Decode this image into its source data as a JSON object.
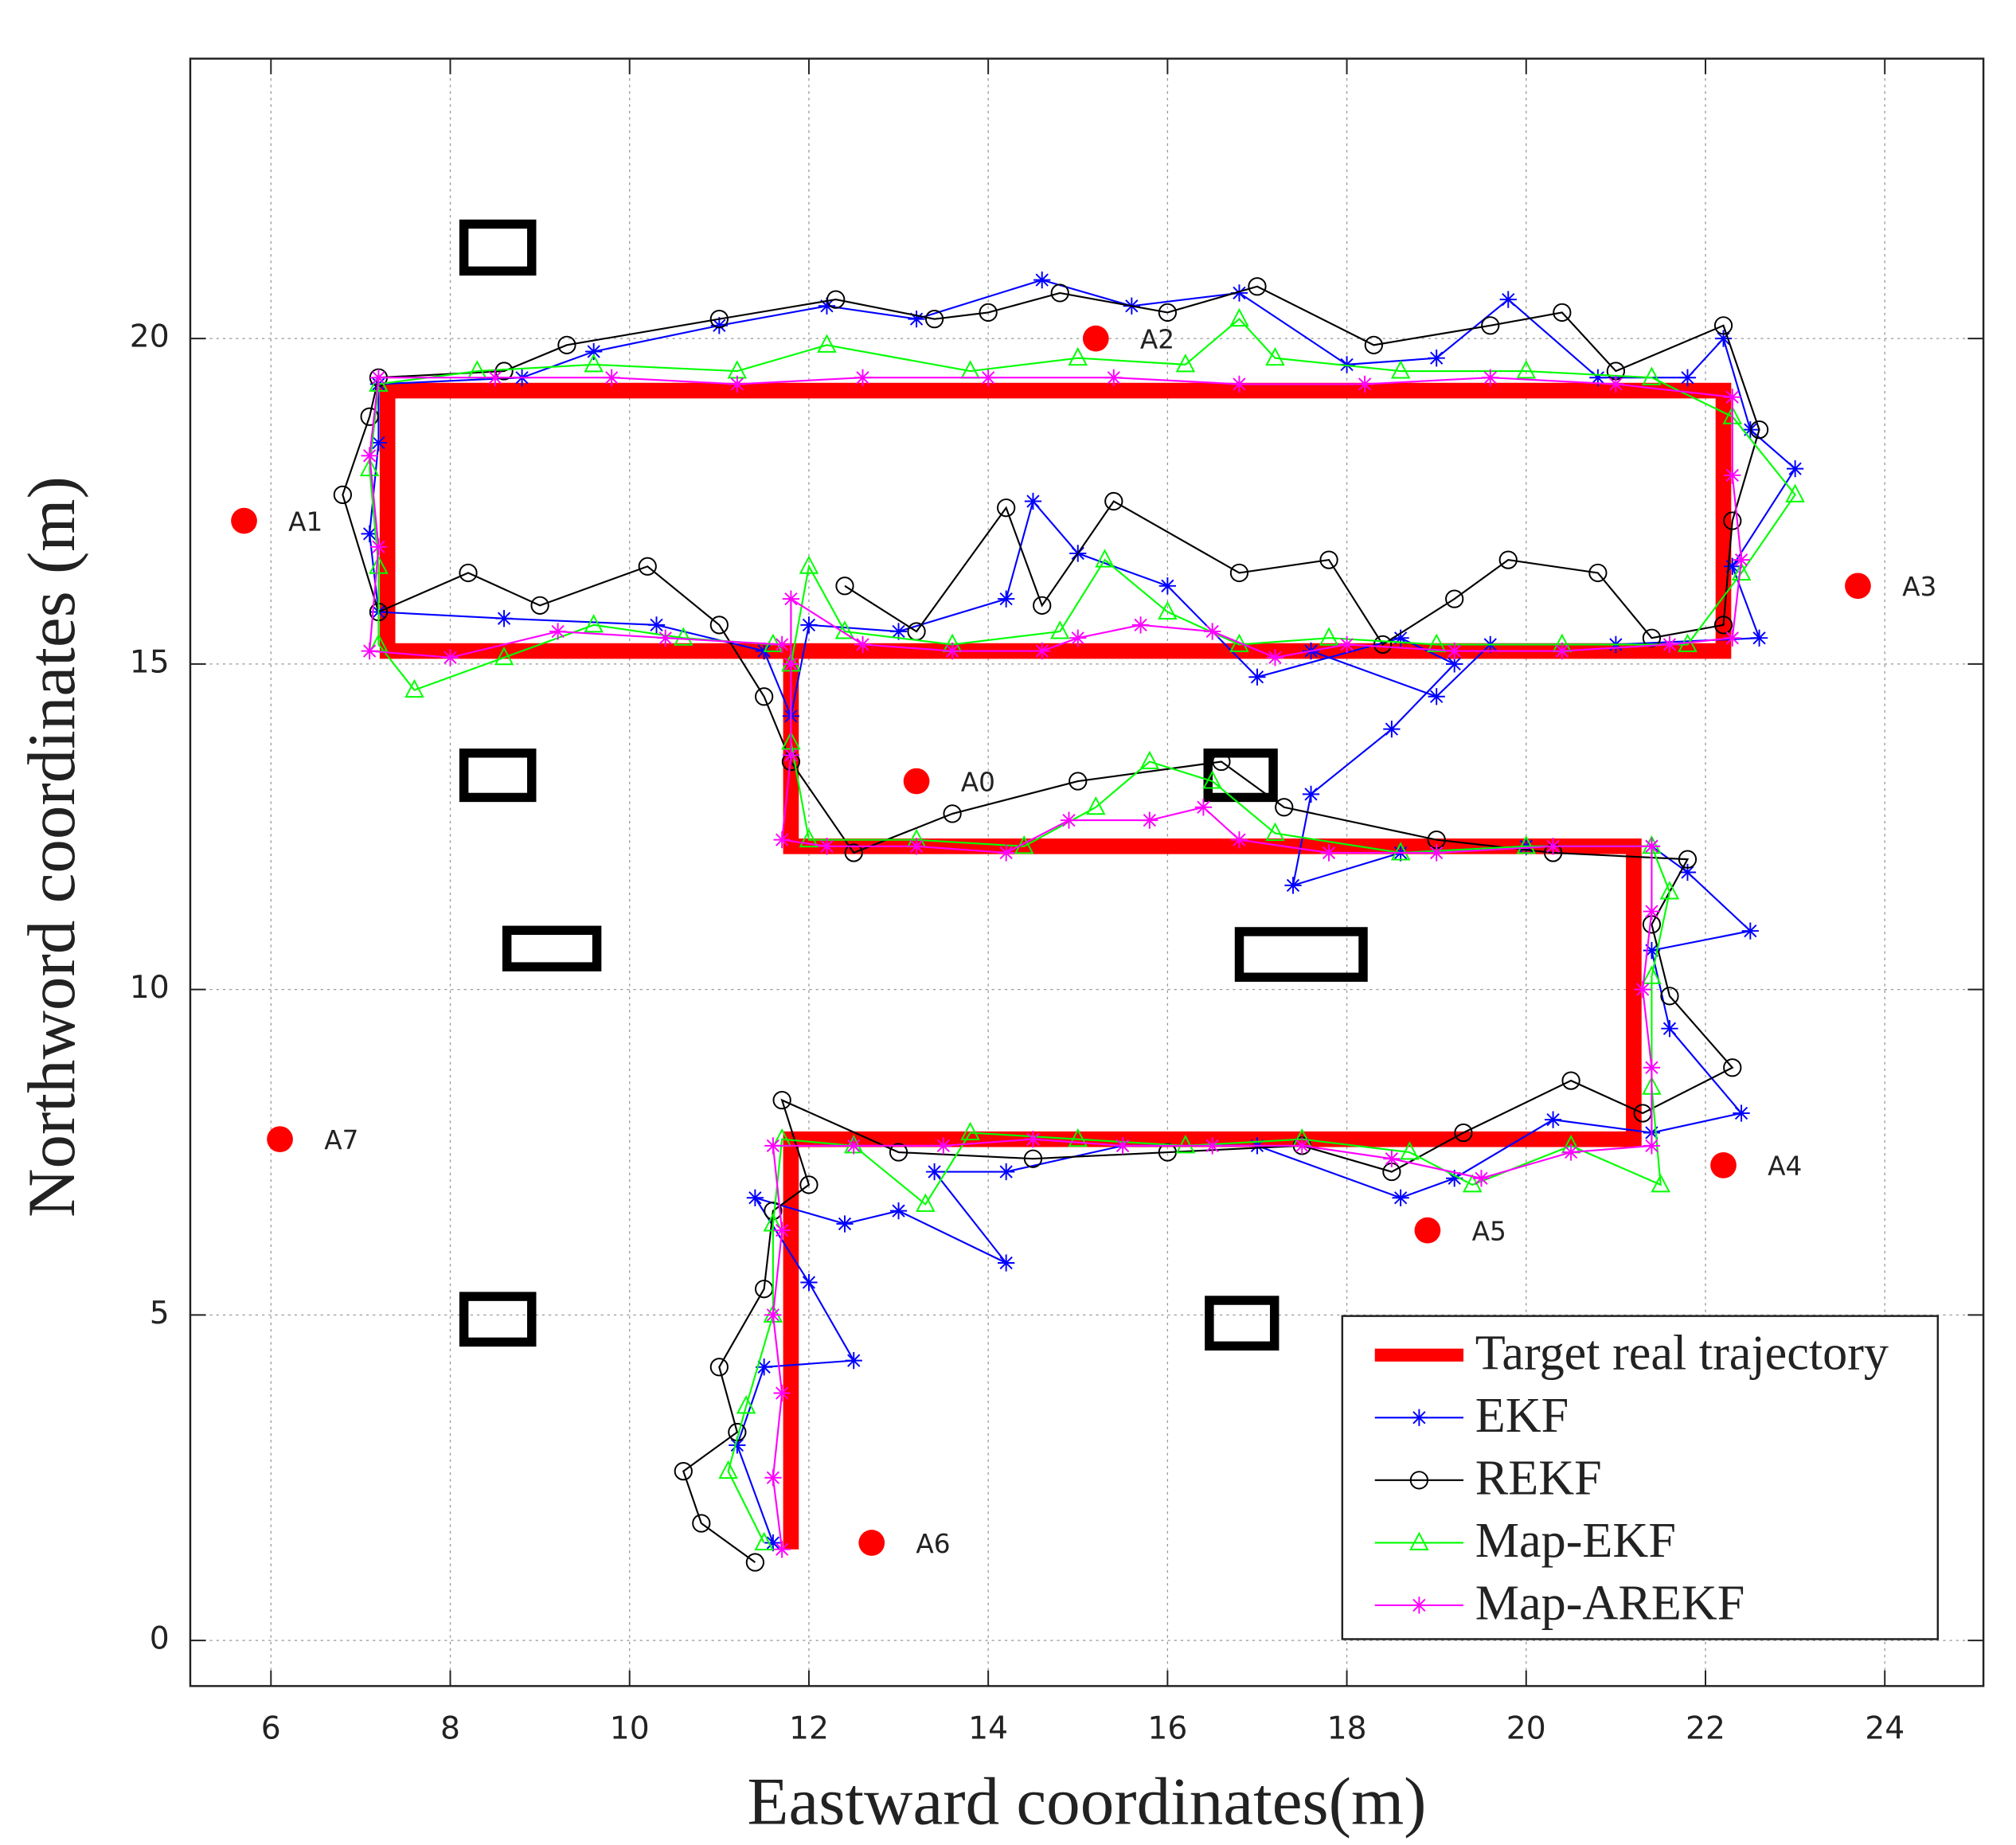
{
  "chart_data": {
    "type": "line",
    "xlabel": "Eastward coordinates(m)",
    "ylabel": "Northword coordinates (m)",
    "xlim": [
      5.1,
      25.1
    ],
    "ylim": [
      -0.7,
      24.3
    ],
    "xticks": [
      6,
      8,
      10,
      12,
      14,
      16,
      18,
      20,
      22,
      24
    ],
    "yticks": [
      0,
      5,
      10,
      15,
      20
    ],
    "grid": true,
    "legend": "lower right",
    "series": [
      {
        "name": "Target real trajectory",
        "color": "#ff0000",
        "x": [
          11.8,
          11.8,
          21.2,
          21.2,
          11.8,
          11.8,
          22.2,
          22.2,
          7.3,
          7.3,
          11.8
        ],
        "y": [
          1.4,
          7.7,
          7.7,
          12.2,
          12.2,
          15.2,
          15.2,
          19.2,
          19.2,
          15.2,
          15.2
        ]
      },
      {
        "name": "EKF",
        "color": "#0000ff",
        "marker": "*",
        "x": [
          11.6,
          11.2,
          11.5,
          12.5,
          12.0,
          11.4,
          12.4,
          13.0,
          14.2,
          13.4,
          14.2,
          15.5,
          17.0,
          18.6,
          19.2,
          20.3,
          21.4,
          22.4,
          21.6,
          21.4,
          22.5,
          21.8,
          21.4,
          20.0,
          18.6,
          17.4,
          17.6,
          18.5,
          19.2,
          18.6,
          17.0,
          16.0,
          15.0,
          14.5,
          14.2,
          13.0,
          12.0,
          11.8,
          11.5,
          10.3,
          8.6,
          7.2,
          7.1,
          7.2,
          7.2,
          8.8,
          9.6,
          11.0,
          12.2,
          13.2,
          14.6,
          15.6,
          16.8,
          18.0,
          19.0,
          19.8,
          20.8,
          21.8,
          22.2,
          22.5,
          23.0,
          22.3,
          22.6,
          21.0,
          19.6,
          19.0,
          17.6
        ],
        "y": [
          1.5,
          3.0,
          4.2,
          4.3,
          5.5,
          6.8,
          6.4,
          6.6,
          5.8,
          7.2,
          7.2,
          7.6,
          7.6,
          6.8,
          7.1,
          8.0,
          7.8,
          8.1,
          9.4,
          10.6,
          10.9,
          11.8,
          12.2,
          12.2,
          12.1,
          11.6,
          13.0,
          14.0,
          15.0,
          15.4,
          14.8,
          16.2,
          16.7,
          17.5,
          16.0,
          15.5,
          15.6,
          14.2,
          15.2,
          15.6,
          15.7,
          15.8,
          17.0,
          18.4,
          19.3,
          19.4,
          19.8,
          20.2,
          20.5,
          20.3,
          20.9,
          20.5,
          20.7,
          19.6,
          19.7,
          20.6,
          19.4,
          19.4,
          20.0,
          18.6,
          18.0,
          16.5,
          15.4,
          15.3,
          15.3,
          14.5,
          15.2
        ]
      },
      {
        "name": "REKF",
        "color": "#000000",
        "marker": "o",
        "x": [
          11.4,
          10.8,
          10.6,
          11.2,
          11.0,
          11.5,
          11.6,
          12.0,
          11.7,
          13.0,
          14.5,
          16.0,
          17.5,
          18.5,
          19.3,
          20.5,
          21.3,
          22.3,
          21.6,
          21.4,
          21.8,
          20.3,
          19.0,
          17.3,
          16.6,
          15.0,
          13.6,
          12.5,
          11.8,
          11.5,
          11.0,
          10.2,
          9.0,
          8.2,
          7.2,
          6.8,
          7.1,
          7.2,
          8.6,
          9.3,
          11.0,
          12.3,
          13.4,
          14.0,
          14.8,
          16.0,
          17.0,
          18.3,
          19.6,
          20.4,
          21.0,
          22.2,
          22.6,
          22.3,
          22.2,
          21.4,
          20.8,
          19.8,
          19.2,
          18.4,
          17.8,
          16.8,
          15.4,
          14.6,
          14.2,
          13.2,
          12.4
        ],
        "y": [
          1.2,
          1.8,
          2.6,
          3.2,
          4.2,
          5.4,
          6.6,
          7.0,
          8.3,
          7.5,
          7.4,
          7.5,
          7.6,
          7.2,
          7.8,
          8.6,
          8.1,
          8.8,
          9.9,
          11.0,
          12.0,
          12.1,
          12.3,
          12.8,
          13.5,
          13.2,
          12.7,
          12.1,
          13.5,
          14.5,
          15.6,
          16.5,
          15.9,
          16.4,
          15.8,
          17.6,
          18.8,
          19.4,
          19.5,
          19.9,
          20.3,
          20.6,
          20.3,
          20.4,
          20.7,
          20.4,
          20.8,
          19.9,
          20.2,
          20.4,
          19.5,
          20.2,
          18.6,
          17.2,
          15.6,
          15.4,
          16.4,
          16.6,
          16.0,
          15.3,
          16.6,
          16.4,
          17.5,
          15.9,
          17.4,
          15.5,
          16.2
        ]
      },
      {
        "name": "Map-EKF",
        "color": "#00ff00",
        "marker": "^",
        "x": [
          11.5,
          11.1,
          11.3,
          11.6,
          11.6,
          11.7,
          12.5,
          13.3,
          13.8,
          15.0,
          16.2,
          17.5,
          18.7,
          19.4,
          20.5,
          21.5,
          21.4,
          21.4,
          21.6,
          21.4,
          20.0,
          18.6,
          17.2,
          16.5,
          15.8,
          15.2,
          14.4,
          13.2,
          12.0,
          11.8,
          11.8,
          12.0,
          12.4,
          13.6,
          14.8,
          15.3,
          16.0,
          16.8,
          17.8,
          19.0,
          20.4,
          21.8,
          22.4,
          23.0,
          22.3,
          21.4,
          20.0,
          18.6,
          17.2,
          16.8,
          16.2,
          15.0,
          13.8,
          12.2,
          11.2,
          9.6,
          8.3,
          7.2,
          7.1,
          7.2,
          7.2,
          7.6,
          8.6,
          9.6,
          10.6,
          11.6
        ],
        "y": [
          1.5,
          2.6,
          3.6,
          5.0,
          6.4,
          7.7,
          7.6,
          6.7,
          7.8,
          7.7,
          7.6,
          7.7,
          7.5,
          7.0,
          7.6,
          7.0,
          8.5,
          10.2,
          11.5,
          12.2,
          12.2,
          12.1,
          12.4,
          13.2,
          13.5,
          12.8,
          12.2,
          12.3,
          12.3,
          13.8,
          15.0,
          16.5,
          15.5,
          15.3,
          15.5,
          16.6,
          15.8,
          15.3,
          15.4,
          15.3,
          15.3,
          15.3,
          16.4,
          17.6,
          18.8,
          19.4,
          19.5,
          19.5,
          19.7,
          20.3,
          19.6,
          19.7,
          19.5,
          19.9,
          19.5,
          19.6,
          19.5,
          19.3,
          18.0,
          16.5,
          15.3,
          14.6,
          15.1,
          15.6,
          15.4,
          15.3
        ]
      },
      {
        "name": "Map-AREKF",
        "color": "#ff00ff",
        "marker": "*",
        "x": [
          11.7,
          11.6,
          11.7,
          11.6,
          11.7,
          11.6,
          12.5,
          13.5,
          14.5,
          15.5,
          16.5,
          17.5,
          18.5,
          19.5,
          20.5,
          21.4,
          21.4,
          21.3,
          21.4,
          21.4,
          20.3,
          19.0,
          17.8,
          16.8,
          16.4,
          15.8,
          14.9,
          14.2,
          13.2,
          12.2,
          11.7,
          11.8,
          11.8,
          11.8,
          12.6,
          13.6,
          14.6,
          15.0,
          15.7,
          16.5,
          17.2,
          18.0,
          19.2,
          20.4,
          21.6,
          22.3,
          22.4,
          22.3,
          22.3,
          21.0,
          19.6,
          18.2,
          16.8,
          15.4,
          14.0,
          12.6,
          11.2,
          9.8,
          8.5,
          7.2,
          7.1,
          7.2,
          7.1,
          8.0,
          9.2,
          10.4,
          11.7
        ],
        "y": [
          1.4,
          2.5,
          3.8,
          5.0,
          6.3,
          7.6,
          7.6,
          7.6,
          7.7,
          7.6,
          7.6,
          7.6,
          7.4,
          7.1,
          7.5,
          7.6,
          8.8,
          10.0,
          11.2,
          12.2,
          12.2,
          12.1,
          12.1,
          12.3,
          12.8,
          12.6,
          12.6,
          12.1,
          12.2,
          12.2,
          12.3,
          13.6,
          15.0,
          16.0,
          15.3,
          15.2,
          15.2,
          15.4,
          15.6,
          15.5,
          15.1,
          15.3,
          15.2,
          15.2,
          15.3,
          15.4,
          16.6,
          17.9,
          19.1,
          19.3,
          19.4,
          19.3,
          19.3,
          19.4,
          19.4,
          19.4,
          19.3,
          19.4,
          19.4,
          19.4,
          18.2,
          16.8,
          15.2,
          15.1,
          15.5,
          15.4,
          15.3
        ]
      }
    ],
    "anchors": {
      "color": "#ff0000",
      "labels": [
        "A0",
        "A1",
        "A2",
        "A3",
        "A4",
        "A5",
        "A6",
        "A7"
      ],
      "x": [
        13.2,
        5.7,
        15.2,
        23.7,
        22.2,
        18.9,
        12.7,
        6.1
      ],
      "y": [
        13.2,
        17.2,
        20.0,
        16.2,
        7.3,
        6.3,
        1.5,
        7.7
      ]
    }
  }
}
